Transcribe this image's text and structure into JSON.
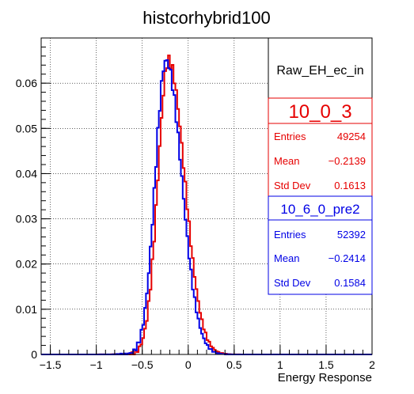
{
  "chart_data": {
    "type": "histogram-step",
    "title": "histcorhybrid100",
    "xlabel": "Energy Response",
    "ylabel": "",
    "xlim": [
      -1.6,
      2.0
    ],
    "ylim": [
      0,
      0.07
    ],
    "grid": true,
    "x_ticks": [
      {
        "v": -1.5,
        "label": "−1.5"
      },
      {
        "v": -1,
        "label": "−1"
      },
      {
        "v": -0.5,
        "label": "−0.5"
      },
      {
        "v": 0,
        "label": "0"
      },
      {
        "v": 0.5,
        "label": "0.5"
      },
      {
        "v": 1,
        "label": "1"
      },
      {
        "v": 1.5,
        "label": "1.5"
      },
      {
        "v": 2,
        "label": "2"
      }
    ],
    "y_ticks": [
      {
        "v": 0,
        "label": "0"
      },
      {
        "v": 0.01,
        "label": "0.01"
      },
      {
        "v": 0.02,
        "label": "0.02"
      },
      {
        "v": 0.03,
        "label": "0.03"
      },
      {
        "v": 0.04,
        "label": "0.04"
      },
      {
        "v": 0.05,
        "label": "0.05"
      },
      {
        "v": 0.06,
        "label": "0.06"
      }
    ],
    "series_color": {
      "10_0_3": "#e60000",
      "10_6_0_pre2": "#0000e6"
    },
    "legend_header": "Raw_EH_ec_in",
    "stats": [
      {
        "name": "10_0_3",
        "color": "#e60000",
        "rows": [
          {
            "label": "Entries",
            "value": "49254"
          },
          {
            "label": "Mean",
            "value": "−0.2139"
          },
          {
            "label": "Std Dev",
            "value": "0.1613"
          }
        ]
      },
      {
        "name": "10_6_0_pre2",
        "color": "#0000e6",
        "rows": [
          {
            "label": "Entries",
            "value": "52392"
          },
          {
            "label": "Mean",
            "value": "−0.2414"
          },
          {
            "label": "Std Dev",
            "value": "0.1584"
          }
        ]
      }
    ],
    "series": [
      {
        "name": "10_0_3",
        "color": "#e60000",
        "mean": -0.2139,
        "peak": 0.065,
        "left_width": 0.115,
        "right_width": 0.175
      },
      {
        "name": "10_6_0_pre2",
        "color": "#0000e6",
        "mean": -0.2414,
        "peak": 0.065,
        "left_width": 0.118,
        "right_width": 0.17
      }
    ]
  }
}
